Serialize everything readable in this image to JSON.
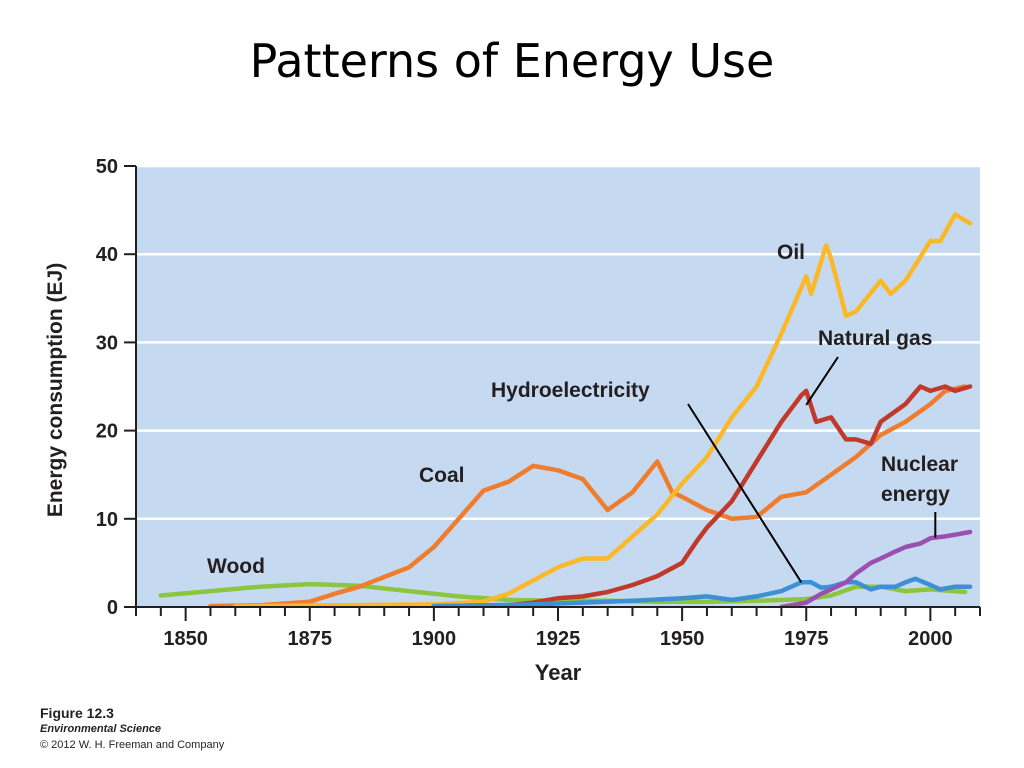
{
  "slide": {
    "title": "Patterns of Energy Use"
  },
  "caption": {
    "figure": "Figure 12.3",
    "book": "Environmental Science",
    "copyright": "© 2012 W. H. Freeman and Company"
  },
  "chart_data": {
    "type": "line",
    "title": "",
    "xlabel": "Year",
    "ylabel": "Energy consumption (EJ)",
    "xlim": [
      1840,
      2010
    ],
    "ylim": [
      0,
      50
    ],
    "xticks": [
      1850,
      1875,
      1900,
      1925,
      1950,
      1975,
      2000
    ],
    "yticks": [
      0,
      10,
      20,
      30,
      40,
      50
    ],
    "grid": "horizontal",
    "background": "#c5daf1",
    "series": [
      {
        "name": "Wood",
        "color": "#8cc63f",
        "x": [
          1845,
          1855,
          1865,
          1875,
          1885,
          1895,
          1905,
          1915,
          1925,
          1935,
          1945,
          1955,
          1965,
          1975,
          1980,
          1985,
          1990,
          1995,
          2000,
          2007
        ],
        "y": [
          1.3,
          1.8,
          2.3,
          2.6,
          2.4,
          1.8,
          1.2,
          0.8,
          0.7,
          0.7,
          0.6,
          0.6,
          0.7,
          0.9,
          1.3,
          2.3,
          2.3,
          1.8,
          2.0,
          1.7
        ]
      },
      {
        "name": "Coal",
        "color": "#ef7d2d",
        "x": [
          1855,
          1865,
          1875,
          1880,
          1885,
          1890,
          1895,
          1900,
          1905,
          1910,
          1915,
          1920,
          1925,
          1930,
          1935,
          1940,
          1945,
          1948,
          1950,
          1955,
          1960,
          1965,
          1970,
          1975,
          1980,
          1985,
          1990,
          1995,
          2000,
          2003,
          2007
        ],
        "y": [
          0.1,
          0.2,
          0.6,
          1.5,
          2.3,
          3.4,
          4.5,
          6.8,
          10.0,
          13.2,
          14.2,
          16.0,
          15.5,
          14.5,
          11.0,
          13.0,
          16.5,
          13.0,
          12.5,
          11.0,
          10.0,
          10.2,
          12.5,
          13.0,
          15.0,
          17.0,
          19.5,
          21.0,
          23.0,
          24.5,
          25.0
        ]
      },
      {
        "name": "Oil",
        "color": "#fbb829",
        "x": [
          1860,
          1900,
          1910,
          1915,
          1920,
          1925,
          1930,
          1935,
          1940,
          1945,
          1950,
          1955,
          1960,
          1965,
          1970,
          1975,
          1976,
          1979,
          1980,
          1983,
          1985,
          1990,
          1992,
          1995,
          2000,
          2002,
          2005,
          2008
        ],
        "y": [
          0.1,
          0.3,
          0.6,
          1.5,
          3.0,
          4.5,
          5.5,
          5.5,
          8.0,
          10.5,
          14.0,
          17.0,
          21.5,
          25.0,
          31.0,
          37.5,
          35.5,
          41.0,
          39.5,
          33.0,
          33.5,
          37.0,
          35.5,
          37.0,
          41.5,
          41.5,
          44.5,
          43.5
        ]
      },
      {
        "name": "Natural gas",
        "color": "#c0392b",
        "x": [
          1900,
          1915,
          1920,
          1925,
          1930,
          1935,
          1940,
          1945,
          1950,
          1953,
          1955,
          1960,
          1965,
          1970,
          1974,
          1975,
          1977,
          1980,
          1983,
          1985,
          1988,
          1990,
          1995,
          1998,
          2000,
          2003,
          2005,
          2008
        ],
        "y": [
          0.1,
          0.2,
          0.5,
          1.0,
          1.2,
          1.7,
          2.5,
          3.5,
          5.0,
          7.5,
          9.0,
          12.0,
          16.5,
          21.0,
          24.0,
          24.5,
          21.0,
          21.5,
          19.0,
          19.0,
          18.5,
          21.0,
          23.0,
          25.0,
          24.5,
          25.0,
          24.5,
          25.0
        ]
      },
      {
        "name": "Hydroelectricity",
        "color": "#3d8fd6",
        "x": [
          1900,
          1920,
          1930,
          1940,
          1950,
          1955,
          1960,
          1965,
          1970,
          1974,
          1976,
          1978,
          1980,
          1983,
          1985,
          1988,
          1990,
          1993,
          1995,
          1997,
          2000,
          2002,
          2005,
          2008
        ],
        "y": [
          0.1,
          0.3,
          0.5,
          0.7,
          1.0,
          1.2,
          0.8,
          1.2,
          1.8,
          2.8,
          2.8,
          2.2,
          2.3,
          2.8,
          2.8,
          2.0,
          2.3,
          2.3,
          2.8,
          3.2,
          2.5,
          2.0,
          2.3,
          2.3
        ]
      },
      {
        "name": "Nuclear energy",
        "color": "#9b4fae",
        "x": [
          1970,
          1975,
          1978,
          1980,
          1983,
          1985,
          1988,
          1990,
          1993,
          1995,
          1998,
          2000,
          2003,
          2005,
          2008
        ],
        "y": [
          0.0,
          0.5,
          1.5,
          2.0,
          2.8,
          3.8,
          5.0,
          5.5,
          6.3,
          6.8,
          7.2,
          7.8,
          8.0,
          8.2,
          8.5
        ]
      }
    ],
    "annotations": [
      {
        "text": "Oil",
        "series": "Oil"
      },
      {
        "text": "Natural gas",
        "series": "Natural gas"
      },
      {
        "text": "Hydroelectricity",
        "series": "Hydroelectricity"
      },
      {
        "text": "Coal",
        "series": "Coal"
      },
      {
        "text": "Nuclear",
        "series": "Nuclear energy"
      },
      {
        "text": "energy",
        "series": "Nuclear energy"
      },
      {
        "text": "Wood",
        "series": "Wood"
      }
    ]
  }
}
